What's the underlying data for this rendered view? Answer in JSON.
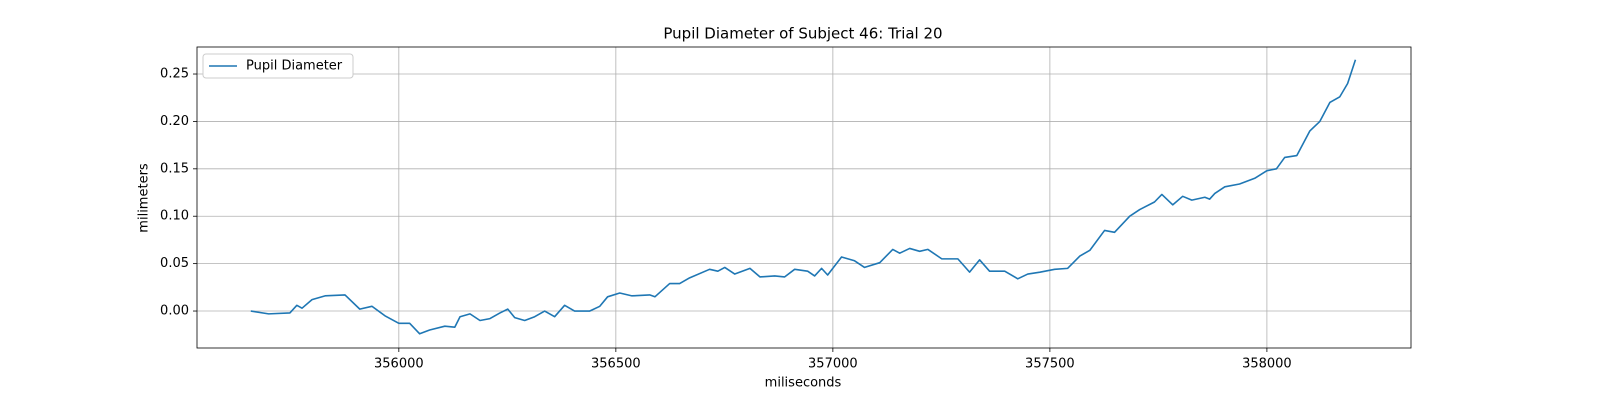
{
  "chart_data": {
    "type": "line",
    "title": "Pupil Diameter of Subject 46: Trial 20",
    "x_label": "miliseconds",
    "y_label": "milimeters",
    "x": [
      355659,
      355700,
      355749,
      355765,
      355777,
      355800,
      355830,
      355876,
      355910,
      355938,
      355968,
      356000,
      356025,
      356048,
      356071,
      356106,
      356129,
      356141,
      356164,
      356187,
      356210,
      356233,
      356251,
      356267,
      356290,
      356313,
      356336,
      356359,
      356382,
      356405,
      356440,
      356463,
      356481,
      356509,
      356537,
      356578,
      356590,
      356624,
      356647,
      356670,
      356716,
      356735,
      356751,
      356774,
      356809,
      356832,
      356866,
      356889,
      356912,
      356942,
      356958,
      356974,
      356988,
      357020,
      357050,
      357073,
      357108,
      357138,
      357154,
      357177,
      357200,
      357219,
      357251,
      357288,
      357315,
      357338,
      357361,
      357396,
      357426,
      357449,
      357477,
      357511,
      357541,
      357569,
      357592,
      357626,
      357649,
      357684,
      357707,
      357741,
      357758,
      357783,
      357806,
      357827,
      357857,
      357868,
      357880,
      357903,
      357937,
      357972,
      358000,
      358022,
      358041,
      358069,
      358099,
      358122,
      358145,
      358168,
      358186,
      358204
    ],
    "series": [
      {
        "name": "Pupil Diameter",
        "color": "#1f77b4",
        "values": [
          0.0,
          -0.003,
          -0.002,
          0.006,
          0.003,
          0.012,
          0.016,
          0.017,
          0.002,
          0.005,
          -0.005,
          -0.013,
          -0.013,
          -0.024,
          -0.02,
          -0.016,
          -0.017,
          -0.006,
          -0.003,
          -0.01,
          -0.008,
          -0.002,
          0.002,
          -0.007,
          -0.01,
          -0.006,
          0.0,
          -0.006,
          0.006,
          0.0,
          0.0,
          0.005,
          0.015,
          0.019,
          0.016,
          0.017,
          0.015,
          0.029,
          0.029,
          0.035,
          0.044,
          0.042,
          0.046,
          0.039,
          0.045,
          0.036,
          0.037,
          0.036,
          0.044,
          0.042,
          0.037,
          0.045,
          0.038,
          0.057,
          0.053,
          0.046,
          0.051,
          0.065,
          0.061,
          0.066,
          0.063,
          0.065,
          0.055,
          0.055,
          0.041,
          0.054,
          0.042,
          0.042,
          0.034,
          0.039,
          0.041,
          0.044,
          0.045,
          0.058,
          0.064,
          0.085,
          0.083,
          0.1,
          0.107,
          0.115,
          0.123,
          0.112,
          0.121,
          0.117,
          0.12,
          0.118,
          0.124,
          0.131,
          0.134,
          0.14,
          0.148,
          0.15,
          0.162,
          0.164,
          0.19,
          0.2,
          0.22,
          0.226,
          0.24,
          0.265
        ]
      }
    ],
    "xlim": [
      355535,
      358332
    ],
    "ylim": [
      -0.039,
      0.2785
    ],
    "xticks": [
      356000,
      356500,
      357000,
      357500,
      358000
    ],
    "yticks": [
      {
        "value": 0,
        "label": "0.00"
      },
      0.05,
      {
        "value": 0.1,
        "label": "0.10"
      },
      0.15,
      {
        "value": 0.2,
        "label": "0.20"
      },
      0.25
    ],
    "grid": true,
    "legend": "upper left"
  }
}
